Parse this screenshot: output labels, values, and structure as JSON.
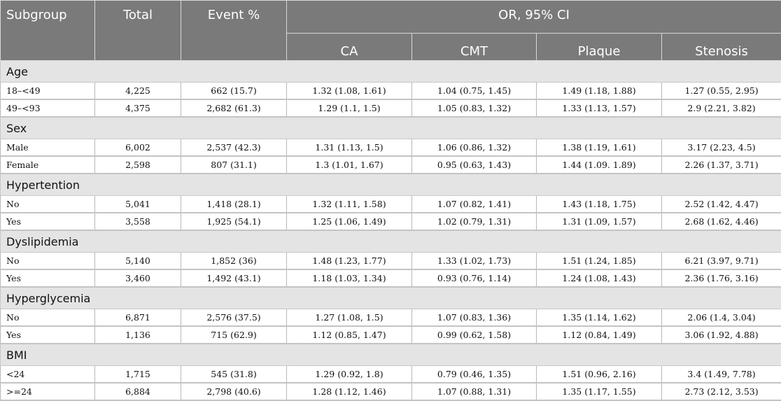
{
  "header": {
    "subgroup": "Subgroup",
    "total": "Total",
    "event_pct": "Event %",
    "or_ci": "OR, 95% CI",
    "ca": "CA",
    "cmt": "CMT",
    "plaque": "Plaque",
    "stenosis": "Stenosis"
  },
  "groups": [
    {
      "name": "Age",
      "rows": [
        {
          "label": "18–<49",
          "total": "4,225",
          "event": "662 (15.7)",
          "ca": "1.32 (1.08, 1.61)",
          "cmt": "1.04 (0.75, 1.45)",
          "plaque": "1.49 (1.18, 1.88)",
          "stenosis": "1.27 (0.55, 2.95)"
        },
        {
          "label": "49–<93",
          "total": "4,375",
          "event": "2,682 (61.3)",
          "ca": "1.29 (1.1, 1.5)",
          "cmt": "1.05 (0.83, 1.32)",
          "plaque": "1.33 (1.13, 1.57)",
          "stenosis": "2.9 (2.21, 3.82)"
        }
      ]
    },
    {
      "name": "Sex",
      "rows": [
        {
          "label": "Male",
          "total": "6,002",
          "event": "2,537 (42.3)",
          "ca": "1.31 (1.13, 1.5)",
          "cmt": "1.06 (0.86, 1.32)",
          "plaque": "1.38 (1.19, 1.61)",
          "stenosis": "3.17 (2.23, 4.5)"
        },
        {
          "label": "Female",
          "total": "2,598",
          "event": "807 (31.1)",
          "ca": "1.3 (1.01, 1.67)",
          "cmt": "0.95 (0.63, 1.43)",
          "plaque": "1.44 (1.09. 1.89)",
          "stenosis": "2.26 (1.37, 3.71)"
        }
      ]
    },
    {
      "name": "Hypertention",
      "rows": [
        {
          "label": "No",
          "total": "5,041",
          "event": "1,418 (28.1)",
          "ca": "1.32 (1.11, 1.58)",
          "cmt": "1.07 (0.82, 1.41)",
          "plaque": "1.43 (1.18, 1.75)",
          "stenosis": "2.52 (1.42, 4.47)"
        },
        {
          "label": "Yes",
          "total": "3,558",
          "event": "1,925 (54.1)",
          "ca": "1.25 (1.06, 1.49)",
          "cmt": "1.02 (0.79, 1.31)",
          "plaque": "1.31 (1.09, 1.57)",
          "stenosis": "2.68 (1.62, 4.46)"
        }
      ]
    },
    {
      "name": "Dyslipidemia",
      "rows": [
        {
          "label": "No",
          "total": "5,140",
          "event": "1,852 (36)",
          "ca": "1.48 (1.23, 1.77)",
          "cmt": "1.33 (1.02, 1.73)",
          "plaque": "1.51 (1.24, 1.85)",
          "stenosis": "6.21 (3.97, 9.71)"
        },
        {
          "label": "Yes",
          "total": "3,460",
          "event": "1,492 (43.1)",
          "ca": "1.18 (1.03, 1.34)",
          "cmt": "0.93 (0.76, 1.14)",
          "plaque": "1.24 (1.08, 1.43)",
          "stenosis": "2.36 (1.76, 3.16)"
        }
      ]
    },
    {
      "name": "Hyperglycemia",
      "rows": [
        {
          "label": "No",
          "total": "6,871",
          "event": "2,576 (37.5)",
          "ca": "1.27 (1.08, 1.5)",
          "cmt": "1.07 (0.83, 1.36)",
          "plaque": "1.35 (1.14, 1.62)",
          "stenosis": "2.06 (1.4, 3.04)"
        },
        {
          "label": "Yes",
          "total": "1,136",
          "event": "715 (62.9)",
          "ca": "1.12 (0.85, 1.47)",
          "cmt": "0.99 (0.62, 1.58)",
          "plaque": "1.12 (0.84, 1.49)",
          "stenosis": "3.06 (1.92, 4.88)"
        }
      ]
    },
    {
      "name": "BMI",
      "rows": [
        {
          "label": "<24",
          "total": "1,715",
          "event": "545 (31.8)",
          "ca": "1.29 (0.92, 1.8)",
          "cmt": "0.79 (0.46, 1.35)",
          "plaque": "1.51 (0.96, 2.16)",
          "stenosis": "3.4 (1.49, 7.78)"
        },
        {
          "label": ">=24",
          "total": "6,884",
          "event": "2,798 (40.6)",
          "ca": "1.28 (1.12, 1.46)",
          "cmt": "1.07 (0.88, 1.31)",
          "plaque": "1.35 (1.17, 1.55)",
          "stenosis": "2.73 (2.12, 3.53)"
        }
      ]
    }
  ]
}
